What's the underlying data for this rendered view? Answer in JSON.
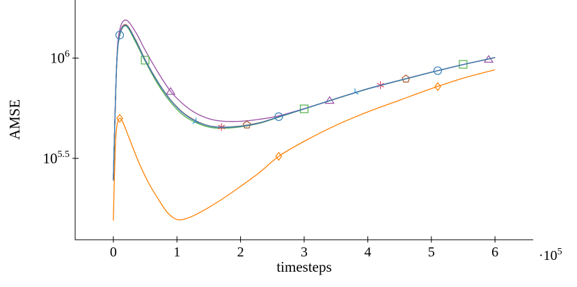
{
  "chart_data": {
    "type": "line",
    "title": "",
    "xlabel": "timesteps",
    "ylabel": "AMSE",
    "x_scale_label": "·10",
    "x_scale_exponent": "5",
    "xlim": [
      -0.6,
      6.6
    ],
    "ylim_log10": [
      5.094,
      6.29
    ],
    "y_scale": "log",
    "grid": false,
    "x_ticks": [
      0,
      1,
      2,
      3,
      4,
      5,
      6
    ],
    "x_tick_labels": [
      "0",
      "1",
      "2",
      "3",
      "4",
      "5",
      "6"
    ],
    "y_ticks_log10": [
      5.5,
      6
    ],
    "y_tick_labels": [
      {
        "base": "10",
        "exp": "5.5"
      },
      {
        "base": "10",
        "exp": "6"
      }
    ],
    "series": [
      {
        "color": "#984ea3",
        "marker": "triangle",
        "x": [
          0,
          0.05,
          0.1,
          0.2,
          0.35,
          0.5,
          0.7,
          0.9,
          1.1,
          1.3,
          1.5,
          1.7,
          2.0,
          2.3,
          2.6,
          3,
          3.5,
          4,
          4.5,
          5,
          5.5,
          6
        ],
        "log10_y": [
          5.39,
          5.96,
          6.14,
          6.19,
          6.13,
          6.04,
          5.93,
          5.835,
          5.77,
          5.725,
          5.698,
          5.686,
          5.685,
          5.695,
          5.712,
          5.748,
          5.798,
          5.847,
          5.889,
          5.93,
          5.968,
          6.003
        ],
        "markers_x": [
          0.9,
          3.4,
          5.9
        ],
        "markers_log10_y": [
          5.833,
          5.788,
          5.993
        ]
      },
      {
        "color": "#4daf4a",
        "marker": "square",
        "x": [
          0,
          0.05,
          0.1,
          0.2,
          0.35,
          0.5,
          0.7,
          0.9,
          1.1,
          1.3,
          1.5,
          1.7,
          2.0,
          2.3,
          2.6,
          3,
          3.5,
          4,
          4.5,
          5,
          5.5,
          6
        ],
        "log10_y": [
          5.39,
          5.94,
          6.11,
          6.16,
          6.08,
          5.985,
          5.87,
          5.78,
          5.715,
          5.678,
          5.656,
          5.65,
          5.657,
          5.675,
          5.705,
          5.746,
          5.797,
          5.846,
          5.888,
          5.929,
          5.968,
          6.002
        ],
        "markers_x": [
          0.5,
          3.0,
          5.5
        ],
        "markers_log10_y": [
          5.99,
          5.747,
          5.969
        ]
      },
      {
        "color": "#a65628",
        "marker": "pentagon",
        "x": [
          0,
          0.05,
          0.1,
          0.2,
          0.35,
          0.5,
          0.7,
          0.9,
          1.1,
          1.3,
          1.5,
          1.7,
          2.0,
          2.3,
          2.6,
          3,
          3.5,
          4,
          4.5,
          5,
          5.5,
          6
        ],
        "log10_y": [
          5.39,
          5.95,
          6.12,
          6.167,
          6.092,
          5.993,
          5.882,
          5.792,
          5.727,
          5.687,
          5.663,
          5.656,
          5.661,
          5.678,
          5.707,
          5.747,
          5.798,
          5.847,
          5.889,
          5.93,
          5.968,
          6.003
        ],
        "markers_x": [
          2.1,
          4.6
        ],
        "markers_log10_y": [
          5.667,
          5.896
        ]
      },
      {
        "color": "#1f9bd6",
        "marker": "tri",
        "x": [
          0,
          0.05,
          0.1,
          0.2,
          0.35,
          0.5,
          0.7,
          0.9,
          1.1,
          1.3,
          1.5,
          1.7,
          2.0,
          2.3,
          2.6,
          3,
          3.5,
          4,
          4.5,
          5,
          5.5,
          6
        ],
        "log10_y": [
          5.39,
          5.95,
          6.12,
          6.165,
          6.09,
          5.99,
          5.88,
          5.79,
          5.725,
          5.685,
          5.662,
          5.655,
          5.66,
          5.677,
          5.707,
          5.747,
          5.798,
          5.847,
          5.889,
          5.93,
          5.968,
          6.003
        ],
        "markers_x": [
          1.3,
          3.8
        ],
        "markers_log10_y": [
          5.684,
          5.83
        ]
      },
      {
        "color": "#e0435e",
        "marker": "star",
        "x": [
          0,
          0.05,
          0.1,
          0.2,
          0.35,
          0.5,
          0.7,
          0.9,
          1.1,
          1.3,
          1.5,
          1.7,
          2.0,
          2.3,
          2.6,
          3,
          3.5,
          4,
          4.5,
          5,
          5.5,
          6
        ],
        "log10_y": [
          5.39,
          5.95,
          6.12,
          6.165,
          6.09,
          5.99,
          5.88,
          5.79,
          5.725,
          5.685,
          5.662,
          5.655,
          5.66,
          5.677,
          5.707,
          5.747,
          5.798,
          5.847,
          5.889,
          5.93,
          5.968,
          6.003
        ],
        "markers_x": [
          1.7,
          4.2
        ],
        "markers_log10_y": [
          5.656,
          5.865
        ]
      },
      {
        "color": "#377eb8",
        "marker": "circle",
        "x": [
          0,
          0.05,
          0.1,
          0.2,
          0.35,
          0.5,
          0.7,
          0.9,
          1.1,
          1.3,
          1.5,
          1.7,
          2.0,
          2.3,
          2.6,
          3,
          3.5,
          4,
          4.5,
          5,
          5.5,
          6
        ],
        "log10_y": [
          5.39,
          5.95,
          6.115,
          6.163,
          6.088,
          5.99,
          5.88,
          5.79,
          5.725,
          5.685,
          5.662,
          5.655,
          5.66,
          5.677,
          5.707,
          5.747,
          5.798,
          5.847,
          5.889,
          5.93,
          5.968,
          6.003
        ],
        "markers_x": [
          0.1,
          2.6,
          5.1
        ],
        "markers_log10_y": [
          6.115,
          5.708,
          5.9375
        ]
      },
      {
        "color": "#ff7f00",
        "marker": "diamond",
        "x": [
          0,
          0.03,
          0.06,
          0.1,
          0.15,
          0.25,
          0.4,
          0.55,
          0.7,
          0.85,
          1.0,
          1.15,
          1.3,
          1.5,
          1.75,
          2.0,
          2.3,
          2.6,
          3,
          3.5,
          4,
          4.5,
          5,
          5.5,
          6
        ],
        "log10_y": [
          5.19,
          5.55,
          5.67,
          5.7,
          5.68,
          5.6,
          5.48,
          5.38,
          5.3,
          5.23,
          5.195,
          5.2,
          5.22,
          5.255,
          5.305,
          5.36,
          5.43,
          5.51,
          5.585,
          5.665,
          5.732,
          5.79,
          5.848,
          5.9,
          5.942
        ],
        "markers_x": [
          0.1,
          2.6,
          5.1
        ],
        "markers_log10_y": [
          5.7,
          5.51,
          5.858
        ]
      }
    ]
  }
}
